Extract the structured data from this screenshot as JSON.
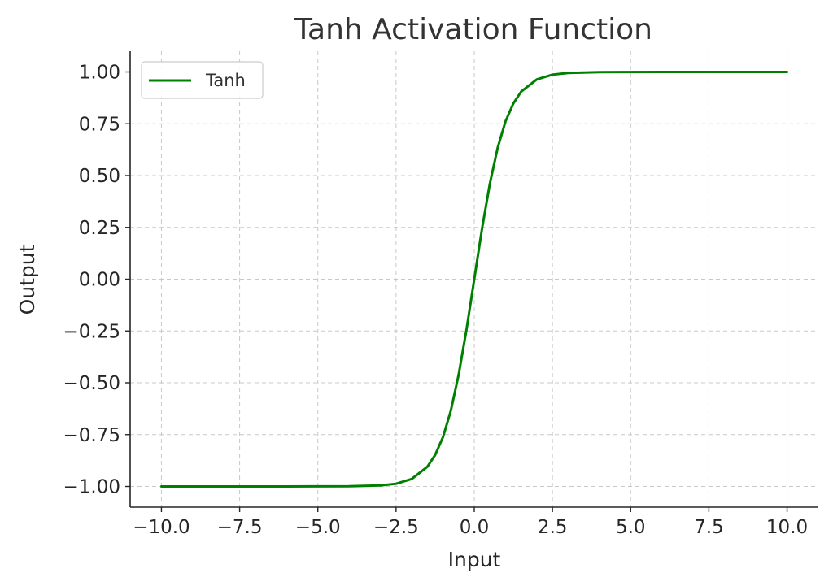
{
  "chart_data": {
    "type": "line",
    "title": "Tanh Activation Function",
    "xlabel": "Input",
    "ylabel": "Output",
    "xlim": [
      -11.0,
      11.0
    ],
    "ylim": [
      -1.1,
      1.1
    ],
    "xticks": [
      -10.0,
      -7.5,
      -5.0,
      -2.5,
      0.0,
      2.5,
      5.0,
      7.5,
      10.0
    ],
    "xtick_labels": [
      "−10.0",
      "−7.5",
      "−5.0",
      "−2.5",
      "0.0",
      "2.5",
      "5.0",
      "7.5",
      "10.0"
    ],
    "yticks": [
      -1.0,
      -0.75,
      -0.5,
      -0.25,
      0.0,
      0.25,
      0.5,
      0.75,
      1.0
    ],
    "ytick_labels": [
      "−1.00",
      "−0.75",
      "−0.50",
      "−0.25",
      "0.00",
      "0.25",
      "0.50",
      "0.75",
      "1.00"
    ],
    "grid": true,
    "legend_position": "top-left",
    "series": [
      {
        "name": "Tanh",
        "color": "#008000",
        "x": [
          -10,
          -8,
          -6,
          -4,
          -3,
          -2.5,
          -2,
          -1.5,
          -1.25,
          -1,
          -0.75,
          -0.5,
          -0.25,
          0,
          0.25,
          0.5,
          0.75,
          1,
          1.25,
          1.5,
          2,
          2.5,
          3,
          4,
          6,
          8,
          10
        ],
        "y": [
          -1.0,
          -1.0,
          -1.0,
          -0.999,
          -0.995,
          -0.987,
          -0.964,
          -0.905,
          -0.848,
          -0.762,
          -0.635,
          -0.462,
          -0.245,
          0.0,
          0.245,
          0.462,
          0.635,
          0.762,
          0.848,
          0.905,
          0.964,
          0.987,
          0.995,
          0.999,
          1.0,
          1.0,
          1.0
        ]
      }
    ]
  }
}
